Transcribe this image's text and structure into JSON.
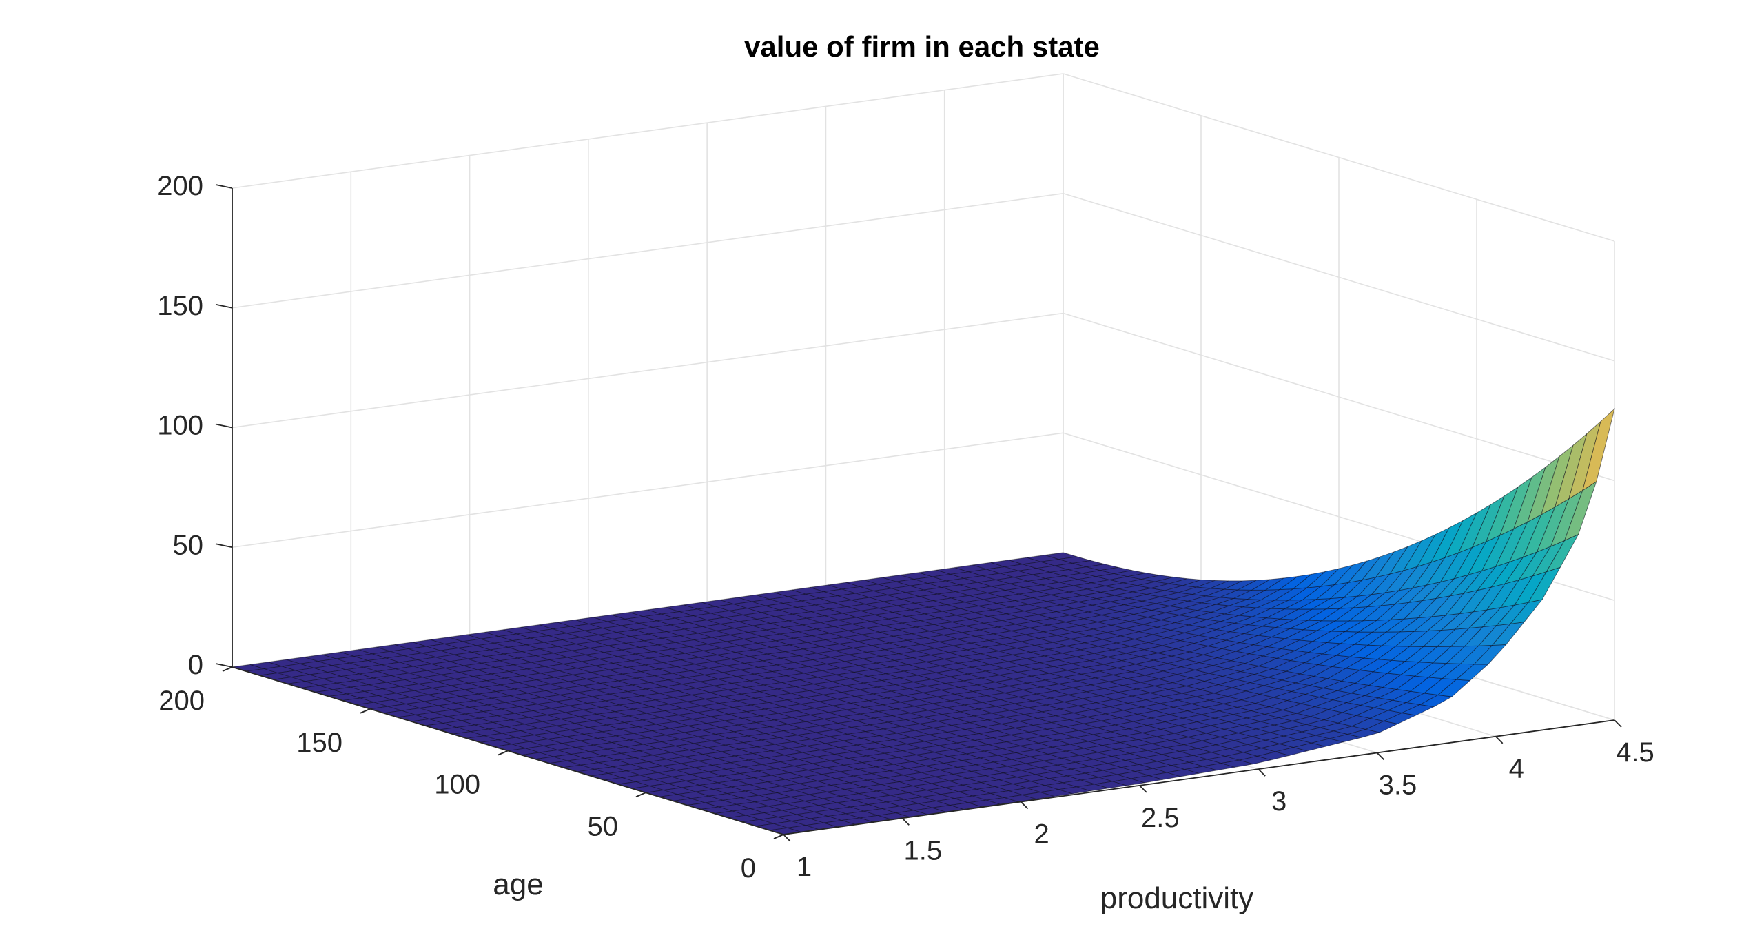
{
  "chart_data": {
    "type": "surface",
    "title": "value of firm in each state",
    "xlabel": "productivity",
    "ylabel": "age",
    "zlabel": "",
    "xlim": [
      1,
      4.5
    ],
    "ylim": [
      0,
      200
    ],
    "zlim": [
      0,
      200
    ],
    "xticks": [
      "1",
      "1.5",
      "2",
      "2.5",
      "3",
      "3.5",
      "4",
      "4.5"
    ],
    "yticks": [
      "0",
      "50",
      "100",
      "150",
      "200"
    ],
    "zticks": [
      "0",
      "50",
      "100",
      "150",
      "200"
    ],
    "grid": true,
    "colormap": "parula",
    "colors": [
      "#352a87",
      "#0363e1",
      "#1485d4",
      "#06a7c6",
      "#38b99e",
      "#92bf73",
      "#d9ba56",
      "#fcce2e",
      "#f9fb0e"
    ],
    "series": [
      {
        "x": [
          1.0,
          1.5,
          2.0,
          2.5,
          3.0,
          3.5,
          3.8,
          4.0,
          4.2,
          4.35,
          4.45,
          4.5
        ],
        "z_at_age_0": [
          0,
          0,
          0.2,
          0.8,
          2.5,
          8,
          18,
          33,
          55,
          80,
          108,
          130
        ],
        "z_at_age_200": [
          0,
          0,
          0,
          0,
          0,
          0,
          0,
          0,
          0,
          0,
          0,
          0
        ],
        "age_dependence": "value declines from maximum at age 0 to 0 at age 200"
      }
    ]
  }
}
